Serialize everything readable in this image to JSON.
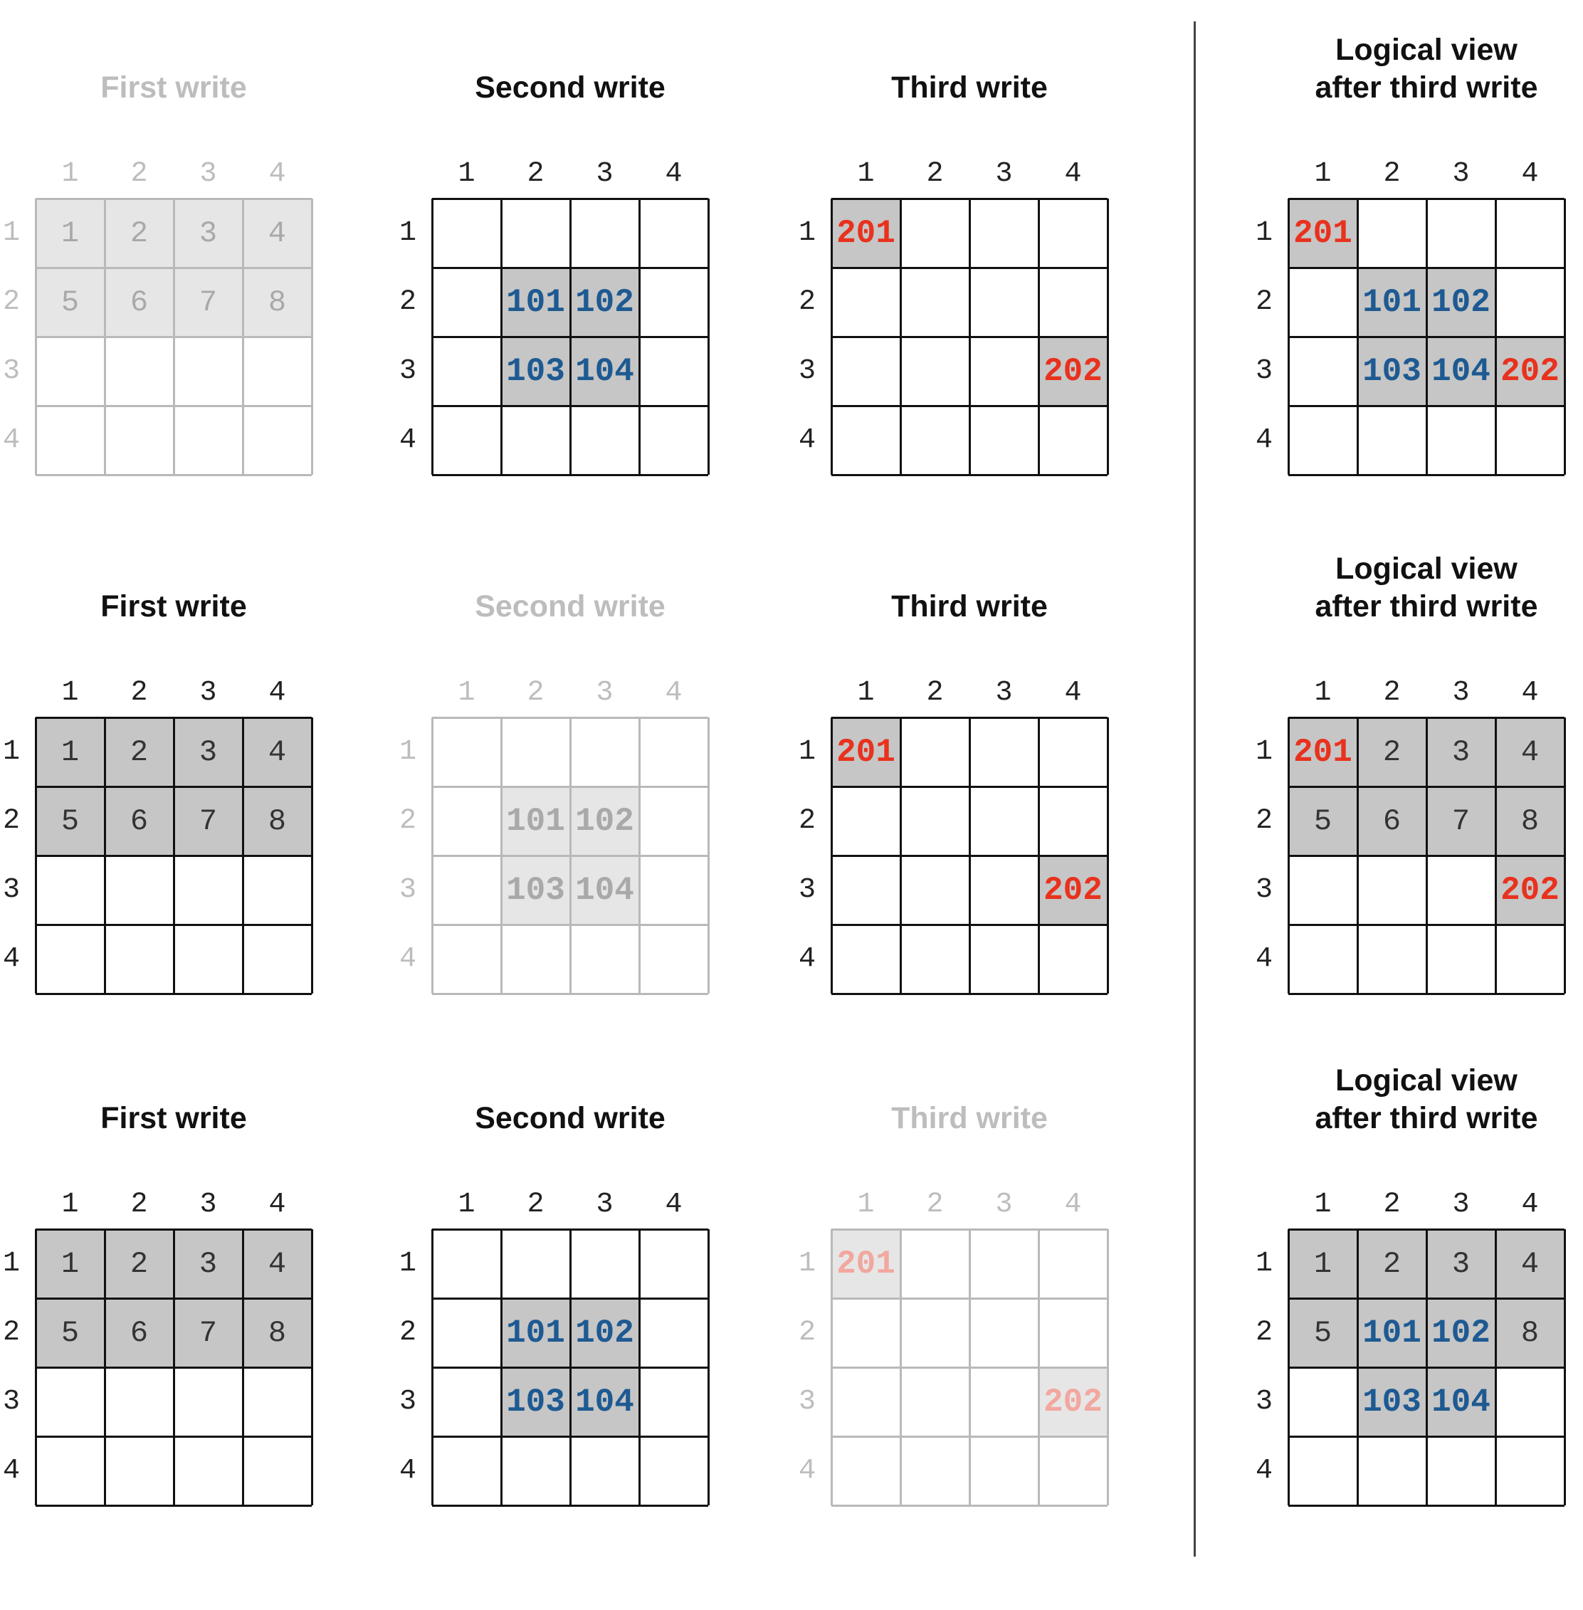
{
  "axis_labels": [
    "1",
    "2",
    "3",
    "4"
  ],
  "colors": {
    "filled_cell": "#c6c6c6",
    "grid_line": "#111111",
    "first_write_text": "#333333",
    "second_write_text": "#1e5a92",
    "third_write_text": "#e8321e",
    "faded_text": "#aaaaaa"
  },
  "rows": [
    {
      "panels": [
        {
          "id": "r1-first",
          "title": [
            "First write"
          ],
          "faded": true,
          "cells": [
            [
              "1",
              "2",
              "3",
              "4"
            ],
            [
              "5",
              "6",
              "7",
              "8"
            ],
            [
              "",
              "",
              "",
              ""
            ],
            [
              "",
              "",
              "",
              ""
            ]
          ],
          "filled": [
            [
              1,
              1,
              1,
              1
            ],
            [
              1,
              1,
              1,
              1
            ],
            [
              0,
              0,
              0,
              0
            ],
            [
              0,
              0,
              0,
              0
            ]
          ],
          "kind": [
            [
              "n",
              "n",
              "n",
              "n"
            ],
            [
              "n",
              "n",
              "n",
              "n"
            ],
            [
              "",
              "",
              "",
              ""
            ],
            [
              "",
              "",
              "",
              ""
            ]
          ]
        },
        {
          "id": "r1-second",
          "title": [
            "Second write"
          ],
          "faded": false,
          "cells": [
            [
              "",
              "",
              "",
              ""
            ],
            [
              "",
              "101",
              "102",
              ""
            ],
            [
              "",
              "103",
              "104",
              ""
            ],
            [
              "",
              "",
              "",
              ""
            ]
          ],
          "filled": [
            [
              0,
              0,
              0,
              0
            ],
            [
              0,
              1,
              1,
              0
            ],
            [
              0,
              1,
              1,
              0
            ],
            [
              0,
              0,
              0,
              0
            ]
          ],
          "kind": [
            [
              "",
              "",
              "",
              ""
            ],
            [
              "",
              "b",
              "b",
              ""
            ],
            [
              "",
              "b",
              "b",
              ""
            ],
            [
              "",
              "",
              "",
              ""
            ]
          ]
        },
        {
          "id": "r1-third",
          "title": [
            "Third write"
          ],
          "faded": false,
          "cells": [
            [
              "201",
              "",
              "",
              ""
            ],
            [
              "",
              "",
              "",
              ""
            ],
            [
              "",
              "",
              "",
              "202"
            ],
            [
              "",
              "",
              "",
              ""
            ]
          ],
          "filled": [
            [
              1,
              0,
              0,
              0
            ],
            [
              0,
              0,
              0,
              0
            ],
            [
              0,
              0,
              0,
              1
            ],
            [
              0,
              0,
              0,
              0
            ]
          ],
          "kind": [
            [
              "r",
              "",
              "",
              ""
            ],
            [
              "",
              "",
              "",
              ""
            ],
            [
              "",
              "",
              "",
              "r"
            ],
            [
              "",
              "",
              "",
              ""
            ]
          ]
        },
        {
          "id": "r1-logical",
          "title": [
            "Logical view",
            "after third write"
          ],
          "faded": false,
          "cells": [
            [
              "201",
              "",
              "",
              ""
            ],
            [
              "",
              "101",
              "102",
              ""
            ],
            [
              "",
              "103",
              "104",
              "202"
            ],
            [
              "",
              "",
              "",
              ""
            ]
          ],
          "filled": [
            [
              1,
              0,
              0,
              0
            ],
            [
              0,
              1,
              1,
              0
            ],
            [
              0,
              1,
              1,
              1
            ],
            [
              0,
              0,
              0,
              0
            ]
          ],
          "kind": [
            [
              "r",
              "",
              "",
              ""
            ],
            [
              "",
              "b",
              "b",
              ""
            ],
            [
              "",
              "b",
              "b",
              "r"
            ],
            [
              "",
              "",
              "",
              ""
            ]
          ]
        }
      ]
    },
    {
      "panels": [
        {
          "id": "r2-first",
          "title": [
            "First write"
          ],
          "faded": false,
          "cells": [
            [
              "1",
              "2",
              "3",
              "4"
            ],
            [
              "5",
              "6",
              "7",
              "8"
            ],
            [
              "",
              "",
              "",
              ""
            ],
            [
              "",
              "",
              "",
              ""
            ]
          ],
          "filled": [
            [
              1,
              1,
              1,
              1
            ],
            [
              1,
              1,
              1,
              1
            ],
            [
              0,
              0,
              0,
              0
            ],
            [
              0,
              0,
              0,
              0
            ]
          ],
          "kind": [
            [
              "n",
              "n",
              "n",
              "n"
            ],
            [
              "n",
              "n",
              "n",
              "n"
            ],
            [
              "",
              "",
              "",
              ""
            ],
            [
              "",
              "",
              "",
              ""
            ]
          ]
        },
        {
          "id": "r2-second",
          "title": [
            "Second write"
          ],
          "faded": true,
          "cells": [
            [
              "",
              "",
              "",
              ""
            ],
            [
              "",
              "101",
              "102",
              ""
            ],
            [
              "",
              "103",
              "104",
              ""
            ],
            [
              "",
              "",
              "",
              ""
            ]
          ],
          "filled": [
            [
              0,
              0,
              0,
              0
            ],
            [
              0,
              1,
              1,
              0
            ],
            [
              0,
              1,
              1,
              0
            ],
            [
              0,
              0,
              0,
              0
            ]
          ],
          "kind": [
            [
              "",
              "",
              "",
              ""
            ],
            [
              "",
              "b",
              "b",
              ""
            ],
            [
              "",
              "b",
              "b",
              ""
            ],
            [
              "",
              "",
              "",
              ""
            ]
          ]
        },
        {
          "id": "r2-third",
          "title": [
            "Third write"
          ],
          "faded": false,
          "cells": [
            [
              "201",
              "",
              "",
              ""
            ],
            [
              "",
              "",
              "",
              ""
            ],
            [
              "",
              "",
              "",
              "202"
            ],
            [
              "",
              "",
              "",
              ""
            ]
          ],
          "filled": [
            [
              1,
              0,
              0,
              0
            ],
            [
              0,
              0,
              0,
              0
            ],
            [
              0,
              0,
              0,
              1
            ],
            [
              0,
              0,
              0,
              0
            ]
          ],
          "kind": [
            [
              "r",
              "",
              "",
              ""
            ],
            [
              "",
              "",
              "",
              ""
            ],
            [
              "",
              "",
              "",
              "r"
            ],
            [
              "",
              "",
              "",
              ""
            ]
          ]
        },
        {
          "id": "r2-logical",
          "title": [
            "Logical view",
            "after third write"
          ],
          "faded": false,
          "cells": [
            [
              "201",
              "2",
              "3",
              "4"
            ],
            [
              "5",
              "6",
              "7",
              "8"
            ],
            [
              "",
              "",
              "",
              "202"
            ],
            [
              "",
              "",
              "",
              ""
            ]
          ],
          "filled": [
            [
              1,
              1,
              1,
              1
            ],
            [
              1,
              1,
              1,
              1
            ],
            [
              0,
              0,
              0,
              1
            ],
            [
              0,
              0,
              0,
              0
            ]
          ],
          "kind": [
            [
              "r",
              "n",
              "n",
              "n"
            ],
            [
              "n",
              "n",
              "n",
              "n"
            ],
            [
              "",
              "",
              "",
              "r"
            ],
            [
              "",
              "",
              "",
              ""
            ]
          ]
        }
      ]
    },
    {
      "panels": [
        {
          "id": "r3-first",
          "title": [
            "First write"
          ],
          "faded": false,
          "cells": [
            [
              "1",
              "2",
              "3",
              "4"
            ],
            [
              "5",
              "6",
              "7",
              "8"
            ],
            [
              "",
              "",
              "",
              ""
            ],
            [
              "",
              "",
              "",
              ""
            ]
          ],
          "filled": [
            [
              1,
              1,
              1,
              1
            ],
            [
              1,
              1,
              1,
              1
            ],
            [
              0,
              0,
              0,
              0
            ],
            [
              0,
              0,
              0,
              0
            ]
          ],
          "kind": [
            [
              "n",
              "n",
              "n",
              "n"
            ],
            [
              "n",
              "n",
              "n",
              "n"
            ],
            [
              "",
              "",
              "",
              ""
            ],
            [
              "",
              "",
              "",
              ""
            ]
          ]
        },
        {
          "id": "r3-second",
          "title": [
            "Second write"
          ],
          "faded": false,
          "cells": [
            [
              "",
              "",
              "",
              ""
            ],
            [
              "",
              "101",
              "102",
              ""
            ],
            [
              "",
              "103",
              "104",
              ""
            ],
            [
              "",
              "",
              "",
              ""
            ]
          ],
          "filled": [
            [
              0,
              0,
              0,
              0
            ],
            [
              0,
              1,
              1,
              0
            ],
            [
              0,
              1,
              1,
              0
            ],
            [
              0,
              0,
              0,
              0
            ]
          ],
          "kind": [
            [
              "",
              "",
              "",
              ""
            ],
            [
              "",
              "b",
              "b",
              ""
            ],
            [
              "",
              "b",
              "b",
              ""
            ],
            [
              "",
              "",
              "",
              ""
            ]
          ]
        },
        {
          "id": "r3-third",
          "title": [
            "Third write"
          ],
          "faded": true,
          "cells": [
            [
              "201",
              "",
              "",
              ""
            ],
            [
              "",
              "",
              "",
              ""
            ],
            [
              "",
              "",
              "",
              "202"
            ],
            [
              "",
              "",
              "",
              ""
            ]
          ],
          "filled": [
            [
              1,
              0,
              0,
              0
            ],
            [
              0,
              0,
              0,
              0
            ],
            [
              0,
              0,
              0,
              1
            ],
            [
              0,
              0,
              0,
              0
            ]
          ],
          "kind": [
            [
              "r",
              "",
              "",
              ""
            ],
            [
              "",
              "",
              "",
              ""
            ],
            [
              "",
              "",
              "",
              "r"
            ],
            [
              "",
              "",
              "",
              ""
            ]
          ]
        },
        {
          "id": "r3-logical",
          "title": [
            "Logical view",
            "after third write"
          ],
          "faded": false,
          "cells": [
            [
              "1",
              "2",
              "3",
              "4"
            ],
            [
              "5",
              "101",
              "102",
              "8"
            ],
            [
              "",
              "103",
              "104",
              ""
            ],
            [
              "",
              "",
              "",
              ""
            ]
          ],
          "filled": [
            [
              1,
              1,
              1,
              1
            ],
            [
              1,
              1,
              1,
              1
            ],
            [
              0,
              1,
              1,
              0
            ],
            [
              0,
              0,
              0,
              0
            ]
          ],
          "kind": [
            [
              "n",
              "n",
              "n",
              "n"
            ],
            [
              "n",
              "b",
              "b",
              "n"
            ],
            [
              "",
              "b",
              "b",
              ""
            ],
            [
              "",
              "",
              "",
              ""
            ]
          ]
        }
      ]
    }
  ]
}
